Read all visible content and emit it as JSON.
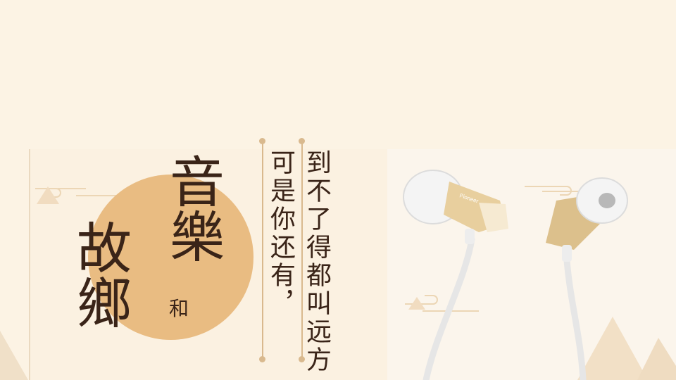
{
  "title": {
    "music": "音樂",
    "and": "和",
    "hometown": "故鄉"
  },
  "poem": {
    "line1": "可是你还有，",
    "line2": "到不了得都叫远方"
  },
  "product": {
    "brand_mark": "Pioneer"
  },
  "colors": {
    "background": "#fcf3e4",
    "circle": "#e9bc82",
    "text": "#3a2418",
    "accent_line": "#d9b98e"
  }
}
